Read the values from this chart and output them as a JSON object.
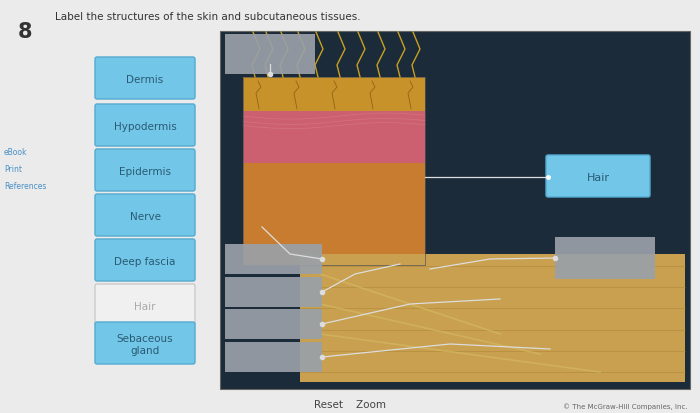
{
  "title": "Label the structures of the skin and subcutaneous tissues.",
  "question_num": "8",
  "bg_color": "#ebebeb",
  "panel_bg": "#1c2b3a",
  "left_buttons": [
    {
      "label": "Dermis",
      "color": "#72c6e8",
      "text_color": "#2a5a72",
      "border": "#55aad0",
      "white": false
    },
    {
      "label": "Hypodermis",
      "color": "#72c6e8",
      "text_color": "#2a5a72",
      "border": "#55aad0",
      "white": false
    },
    {
      "label": "Epidermis",
      "color": "#72c6e8",
      "text_color": "#2a5a72",
      "border": "#55aad0",
      "white": false
    },
    {
      "label": "Nerve",
      "color": "#72c6e8",
      "text_color": "#2a5a72",
      "border": "#55aad0",
      "white": false
    },
    {
      "label": "Deep fascia",
      "color": "#72c6e8",
      "text_color": "#2a5a72",
      "border": "#55aad0",
      "white": false
    },
    {
      "label": "Hair",
      "color": "#f0f0f0",
      "text_color": "#aaaaaa",
      "border": "#cccccc",
      "white": true
    },
    {
      "label": "Sebaceous\ngland",
      "color": "#72c6e8",
      "text_color": "#2a5a72",
      "border": "#55aad0",
      "white": false
    }
  ],
  "hair_box": {
    "label": "Hair",
    "color": "#72c6e8",
    "text_color": "#2a5a72",
    "border": "#55aad0"
  },
  "sidebar": [
    "eBook",
    "Print",
    "References"
  ],
  "footer": "Reset    Zoom",
  "copyright": "© The McGraw-Hill Companies, Inc."
}
